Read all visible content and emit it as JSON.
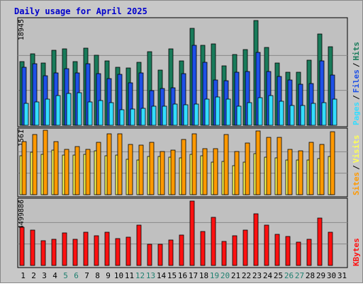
{
  "chart_data": [
    {
      "type": "bar",
      "title": "Daily usage for April 2025",
      "legend_separator": "/",
      "series": [
        {
          "name": "Pages",
          "color": "#33ddff",
          "values": [
            3968,
            4224,
            4736,
            5376,
            5760,
            5888,
            4224,
            4480,
            4096,
            2816,
            2944,
            3072,
            3456,
            3456,
            3840,
            3712,
            3840,
            4736,
            5120,
            4736,
            3456,
            4096,
            4992,
            5376,
            4352,
            3584,
            3584,
            3968,
            4096,
            4736,
            null
          ]
        },
        {
          "name": "Files",
          "color": "#1e50e6",
          "values": [
            10496,
            11136,
            8960,
            9472,
            10240,
            9472,
            11136,
            9344,
            8448,
            9216,
            7680,
            9472,
            6272,
            6656,
            6784,
            9344,
            14464,
            11392,
            8192,
            8064,
            9600,
            9728,
            13184,
            9728,
            8832,
            8192,
            7424,
            7552,
            11648,
            9088,
            null
          ]
        },
        {
          "name": "Hits",
          "color": "#197b5a",
          "values": [
            11520,
            12928,
            11264,
            13568,
            13824,
            11520,
            13952,
            12672,
            11648,
            10496,
            10368,
            11392,
            13312,
            9984,
            13824,
            11648,
            17536,
            14464,
            14720,
            10752,
            12800,
            13696,
            18945,
            14080,
            11264,
            9600,
            9600,
            11776,
            16512,
            14208,
            null
          ]
        }
      ],
      "ylim": [
        0,
        18945
      ],
      "yticks": [
        18945
      ]
    },
    {
      "type": "bar",
      "legend_separator": "/",
      "series": [
        {
          "name": "Sites",
          "color": "#ff9900",
          "values": [
            1286,
            1458,
            1561,
            1286,
            1098,
            1166,
            1098,
            1269,
            1475,
            1475,
            1218,
            1201,
            1269,
            1046,
            1080,
            1338,
            1475,
            1115,
            1115,
            1458,
            1046,
            1252,
            1544,
            1389,
            1389,
            1098,
            1063,
            1269,
            1218,
            1526,
            null
          ]
        },
        {
          "name": "Visits",
          "color": "#ffff55",
          "values": [
            943,
            1029,
            978,
            1080,
            960,
            960,
            978,
            1063,
            943,
            960,
            858,
            840,
            926,
            926,
            909,
            892,
            978,
            943,
            789,
            806,
            703,
            789,
            995,
            909,
            892,
            840,
            840,
            840,
            875,
            926,
            null
          ]
        }
      ],
      "ylim": [
        0,
        1561
      ],
      "yticks": [
        1561
      ]
    },
    {
      "type": "bar",
      "categories": [
        "1",
        "2",
        "3",
        "4",
        "5",
        "6",
        "7",
        "8",
        "9",
        "10",
        "11",
        "12",
        "13",
        "14",
        "15",
        "16",
        "17",
        "18",
        "19",
        "20",
        "21",
        "22",
        "23",
        "24",
        "25",
        "26",
        "27",
        "28",
        "29",
        "30",
        "31"
      ],
      "category_colors": [
        "#000",
        "#000",
        "#000",
        "#000",
        "#208070",
        "#208070",
        "#000",
        "#000",
        "#000",
        "#000",
        "#000",
        "#208070",
        "#208070",
        "#000",
        "#000",
        "#000",
        "#000",
        "#000",
        "#208070",
        "#208070",
        "#000",
        "#000",
        "#000",
        "#000",
        "#000",
        "#208070",
        "#208070",
        "#000",
        "#000",
        "#000",
        "#000"
      ],
      "series": [
        {
          "name": "KBytes",
          "color": "#ff1111",
          "values": [
            2670000,
            2472000,
            1731000,
            1830000,
            2275000,
            1830000,
            2324000,
            2077000,
            2324000,
            1879000,
            1978000,
            2819000,
            1483000,
            1483000,
            1780000,
            2126000,
            4499886,
            2374000,
            3363000,
            1681000,
            2077000,
            2472000,
            3610000,
            2819000,
            2176000,
            2027000,
            1632000,
            1830000,
            3313000,
            2324000,
            null
          ]
        }
      ],
      "ylim": [
        0,
        4499886
      ],
      "yticks": [
        4499886
      ]
    }
  ]
}
